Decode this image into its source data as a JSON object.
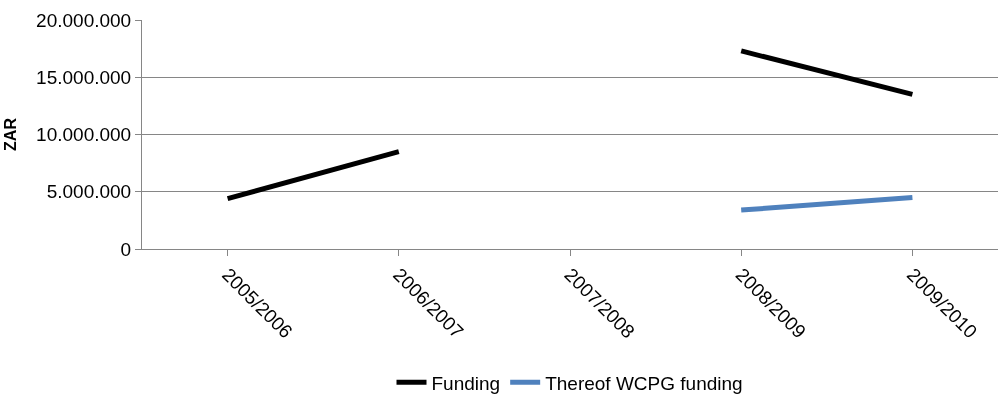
{
  "chart_data": {
    "type": "line",
    "ylabel": "ZAR",
    "categories": [
      "2005/2006",
      "2006/2007",
      "2007/2008",
      "2008/2009",
      "2009/2010"
    ],
    "series": [
      {
        "name": "Funding",
        "color": "#000000",
        "values": [
          4400000,
          8500000,
          null,
          17300000,
          13500000
        ]
      },
      {
        "name": "Thereof WCPG funding",
        "color": "#4f81bd",
        "values": [
          null,
          null,
          null,
          3400000,
          4500000
        ]
      }
    ],
    "ylim": [
      0,
      20000000
    ],
    "yticks": [
      {
        "value": 0,
        "label": "0"
      },
      {
        "value": 5000000,
        "label": "5.000.000"
      },
      {
        "value": 10000000,
        "label": "10.000.000"
      },
      {
        "value": 15000000,
        "label": "15.000.000"
      },
      {
        "value": 20000000,
        "label": "20.000.000"
      }
    ],
    "grid": "y",
    "legend": "bottom",
    "marker": "none",
    "line_style": "solid"
  }
}
